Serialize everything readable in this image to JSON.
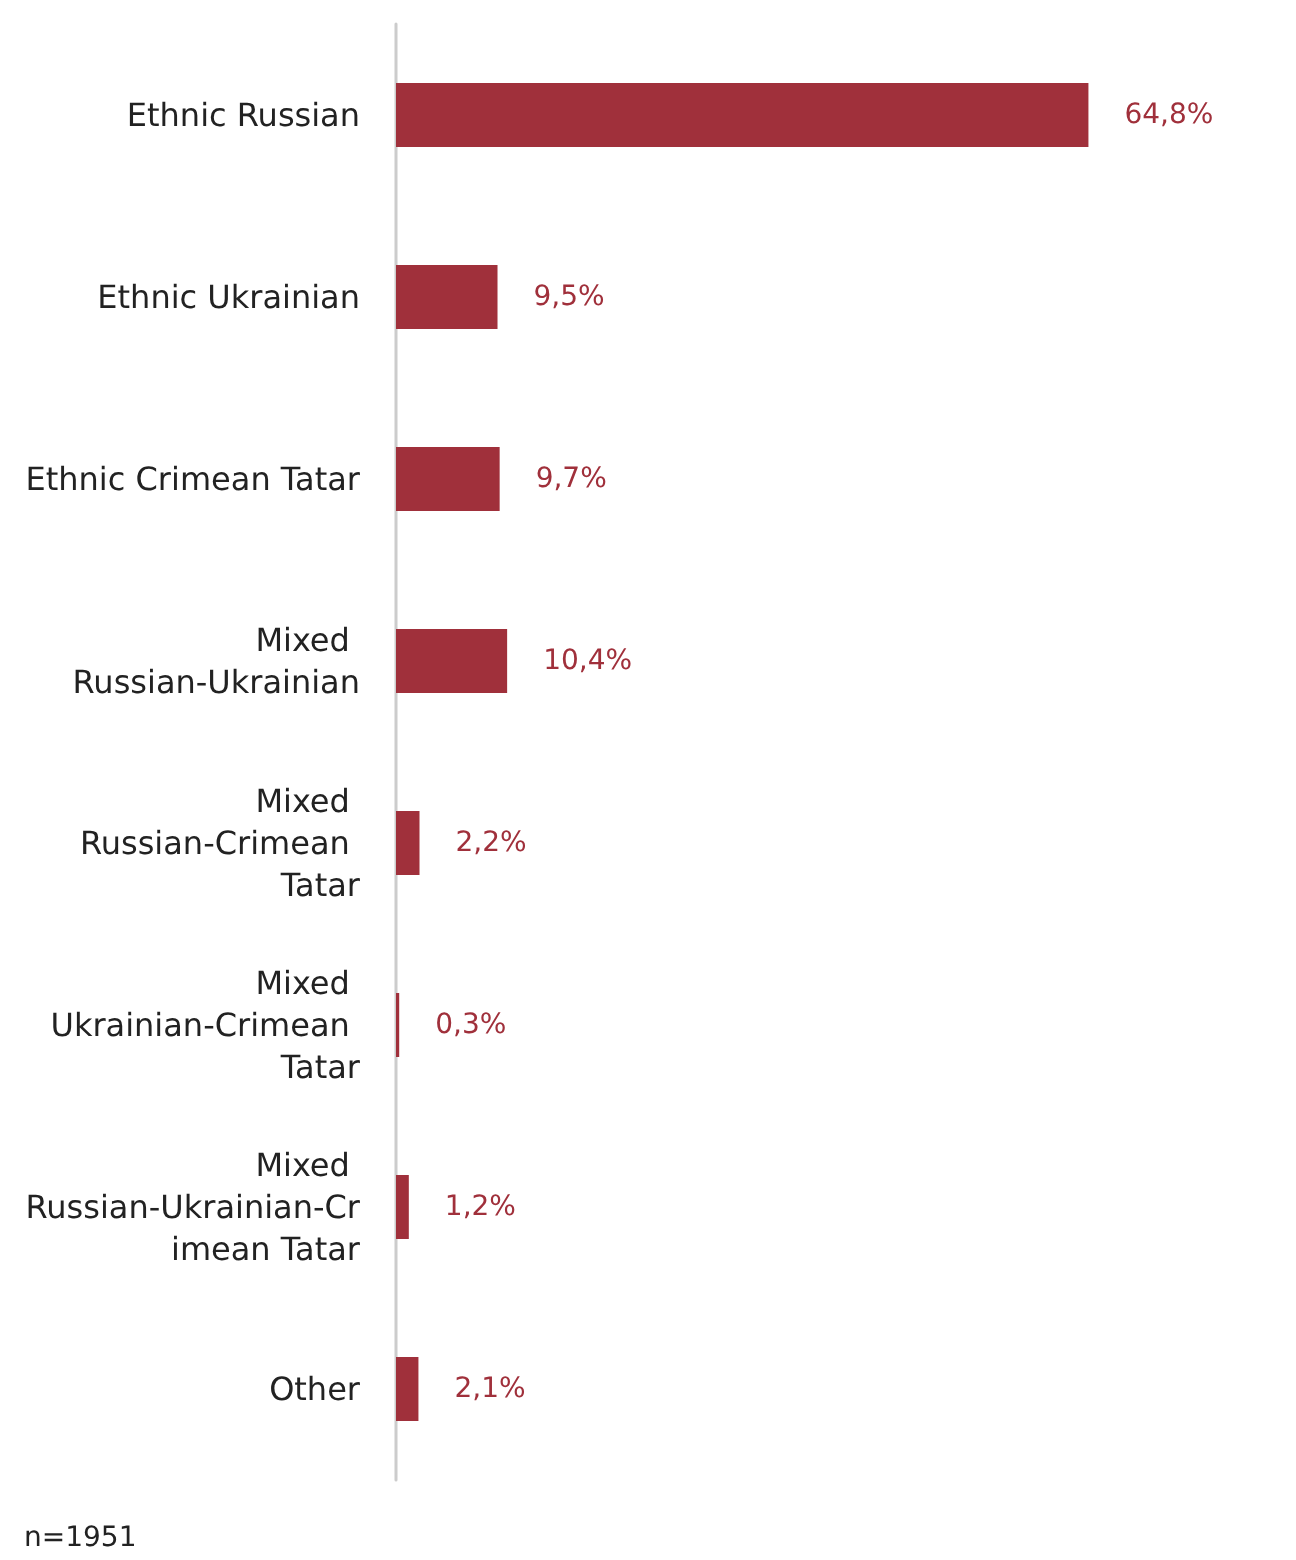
{
  "chart_data": {
    "type": "bar",
    "orientation": "horizontal",
    "categories": [
      "Ethnic Russian",
      "Ethnic Ukrainian",
      "Ethnic Crimean Tatar",
      "Mixed Russian-Ukrainian",
      "Mixed Russian-Crimean Tatar",
      "Mixed Ukrainian-Crimean Tatar",
      "Mixed Russian-Ukrainian-Crimean Tatar",
      "Other"
    ],
    "values": [
      64.8,
      9.5,
      9.7,
      10.4,
      2.2,
      0.3,
      1.2,
      2.1
    ],
    "value_labels": [
      "64,8%",
      "9,5%",
      "9,7%",
      "10,4%",
      "2,2%",
      "0,3%",
      "1,2%",
      "2,1%"
    ],
    "color": "#a0303b",
    "annotations": [
      "n=1951"
    ]
  }
}
